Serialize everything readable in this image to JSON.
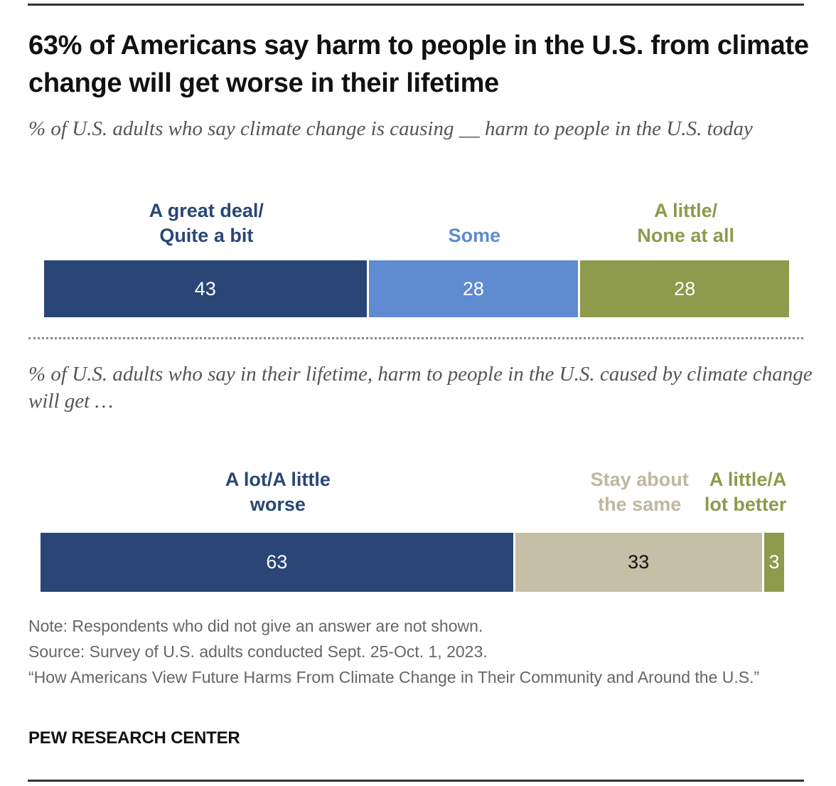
{
  "title": "63% of Americans say harm to people in the U.S. from climate change will get worse in their lifetime",
  "note": "Note: Respondents who did not give an answer are not shown.",
  "source": "Source: Survey of U.S. adults conducted Sept. 25-Oct. 1, 2023.",
  "report": "“How Americans View Future Harms From Climate Change in Their Community and Around the U.S.”",
  "brand": "PEW RESEARCH CENTER",
  "chart_data": [
    {
      "type": "bar",
      "orientation": "horizontal-stacked",
      "title": "% of U.S. adults who say climate change is causing __ harm to people in the U.S. today",
      "categories": [
        "A great deal/\nQuite a bit",
        "Some",
        "A little/\nNone at all"
      ],
      "values": [
        43,
        28,
        28
      ],
      "colors": [
        "#2a4677",
        "#5f8bd1",
        "#8e9a4c"
      ],
      "label_colors": [
        "#2a4677",
        "#5f8bd1",
        "#8e9a4c"
      ],
      "value_text_colors": [
        "#ffffff",
        "#ffffff",
        "#ffffff"
      ],
      "xlim": [
        0,
        100
      ]
    },
    {
      "type": "bar",
      "orientation": "horizontal-stacked",
      "title": "% of U.S. adults who say in their lifetime, harm to people in the U.S. caused by climate change will get …",
      "categories": [
        "A lot/A little\nworse",
        "Stay about\nthe same",
        "A little/A\nlot better"
      ],
      "values": [
        63,
        33,
        3
      ],
      "colors": [
        "#2a4677",
        "#c4bfa6",
        "#8e9a4c"
      ],
      "label_colors": [
        "#2a4677",
        "#bdb8a0",
        "#8e9a4c"
      ],
      "value_text_colors": [
        "#ffffff",
        "#111111",
        "#ffffff"
      ],
      "xlim": [
        0,
        100
      ]
    }
  ]
}
